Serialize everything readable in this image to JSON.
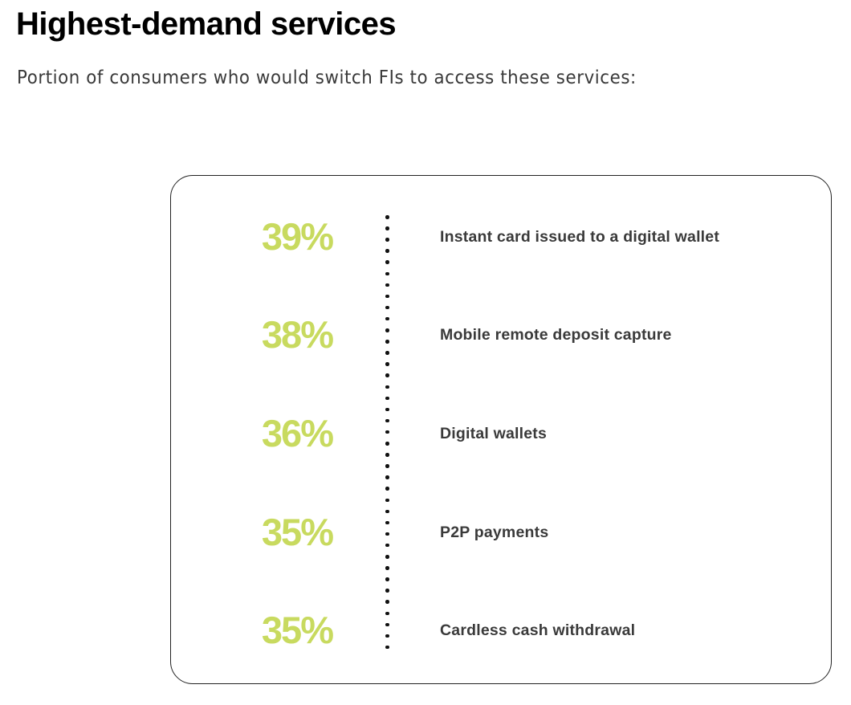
{
  "title": "Highest-demand services",
  "subtitle": "Portion of consumers who would switch FIs to access these services:",
  "colors": {
    "accent": "#c8da5f",
    "text": "#3a3a3a"
  },
  "chart_data": {
    "type": "table",
    "title": "Highest-demand services",
    "subtitle": "Portion of consumers who would switch FIs to access these services:",
    "rows": [
      {
        "value": 39,
        "display": "39%",
        "label": "Instant card issued to a digital wallet"
      },
      {
        "value": 38,
        "display": "38%",
        "label": "Mobile remote deposit capture"
      },
      {
        "value": 36,
        "display": "36%",
        "label": "Digital wallets"
      },
      {
        "value": 35,
        "display": "35%",
        "label": "P2P payments"
      },
      {
        "value": 35,
        "display": "35%",
        "label": "Cardless cash withdrawal"
      }
    ]
  }
}
